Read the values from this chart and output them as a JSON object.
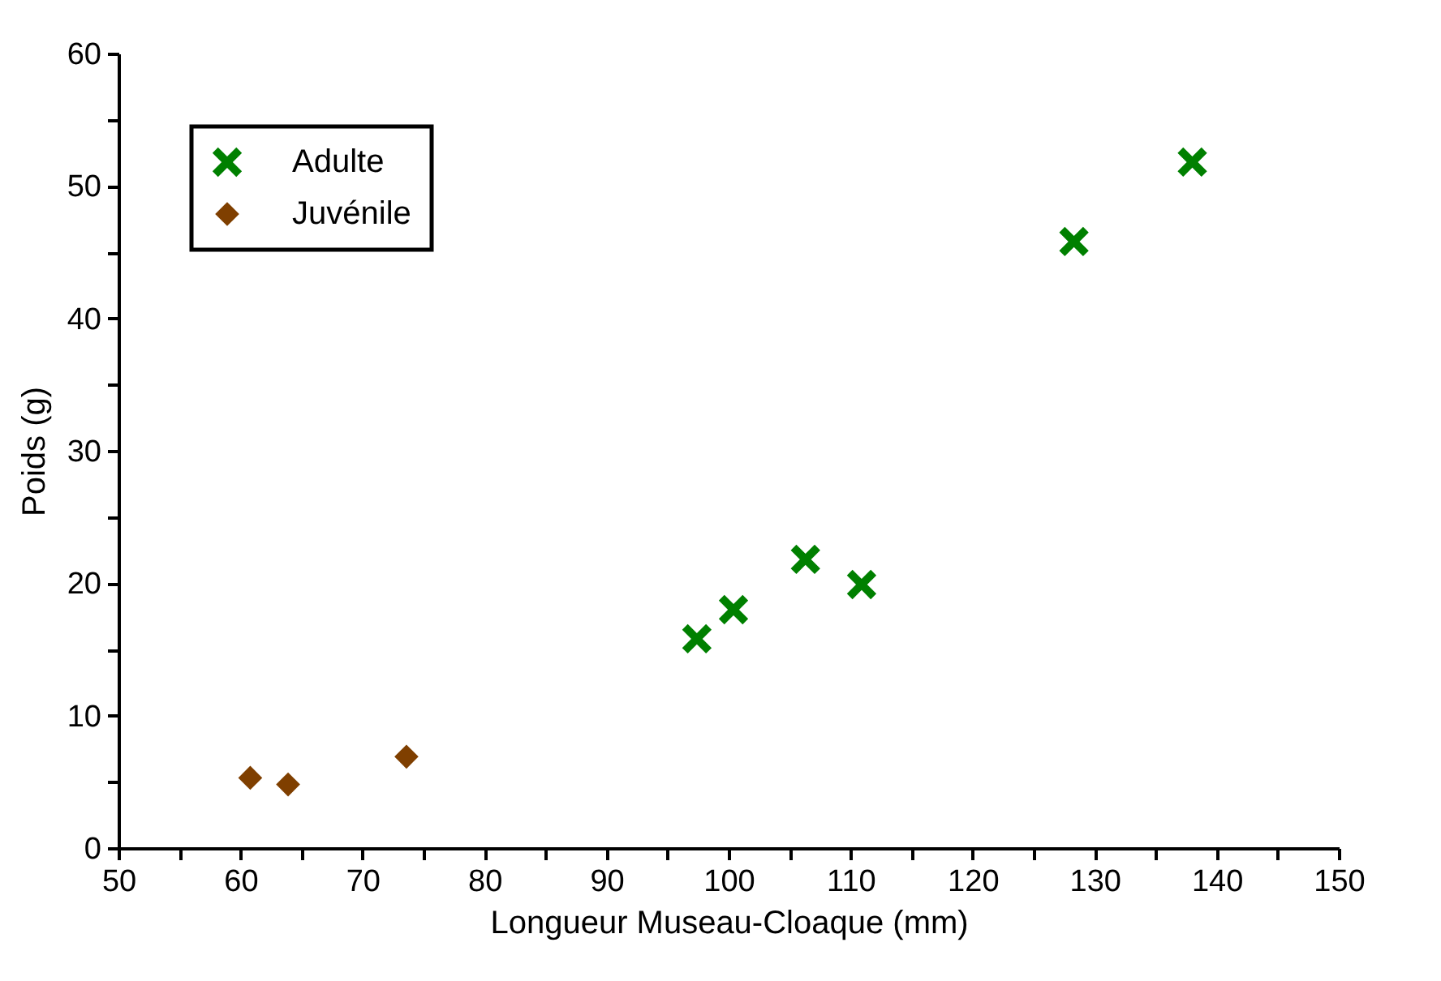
{
  "chart_data": {
    "type": "scatter",
    "xlabel": "Longueur Museau-Cloaque (mm)",
    "ylabel": "Poids (g)",
    "xlim": [
      50,
      150
    ],
    "ylim": [
      0,
      60
    ],
    "xticks": [
      50,
      {
        "value": 55,
        "label": null
      },
      60,
      {
        "value": 65,
        "label": null
      },
      70,
      {
        "value": 75,
        "label": null
      },
      80,
      {
        "value": 85,
        "label": null
      },
      90,
      {
        "value": 95,
        "label": null
      },
      100,
      {
        "value": 105,
        "label": null
      },
      110,
      {
        "value": 115,
        "label": null
      },
      120,
      {
        "value": 125,
        "label": null
      },
      130,
      {
        "value": 135,
        "label": null
      },
      140,
      {
        "value": 145,
        "label": null
      },
      150
    ],
    "yticks": [
      0,
      {
        "value": 5,
        "label": null
      },
      10,
      {
        "value": 15,
        "label": null
      },
      20,
      {
        "value": 25,
        "label": null
      },
      30,
      {
        "value": 35,
        "label": null
      },
      40,
      {
        "value": 45,
        "label": null
      },
      50,
      {
        "value": 55,
        "label": null
      },
      60
    ],
    "grid": false,
    "legend": "top left",
    "series": [
      {
        "name": "Adulte",
        "color": "#008000",
        "marker": "cross",
        "x": [
          97.4,
          100.4,
          106.3,
          110.9,
          128.3,
          138.0
        ],
        "values": [
          15.8,
          18.0,
          21.8,
          19.9,
          45.8,
          51.8
        ]
      },
      {
        "name": "Juvénile",
        "color": "#7f3f00",
        "marker": "diamond",
        "x": [
          60.8,
          63.9,
          73.6
        ],
        "values": [
          5.3,
          4.8,
          6.9
        ]
      }
    ]
  }
}
